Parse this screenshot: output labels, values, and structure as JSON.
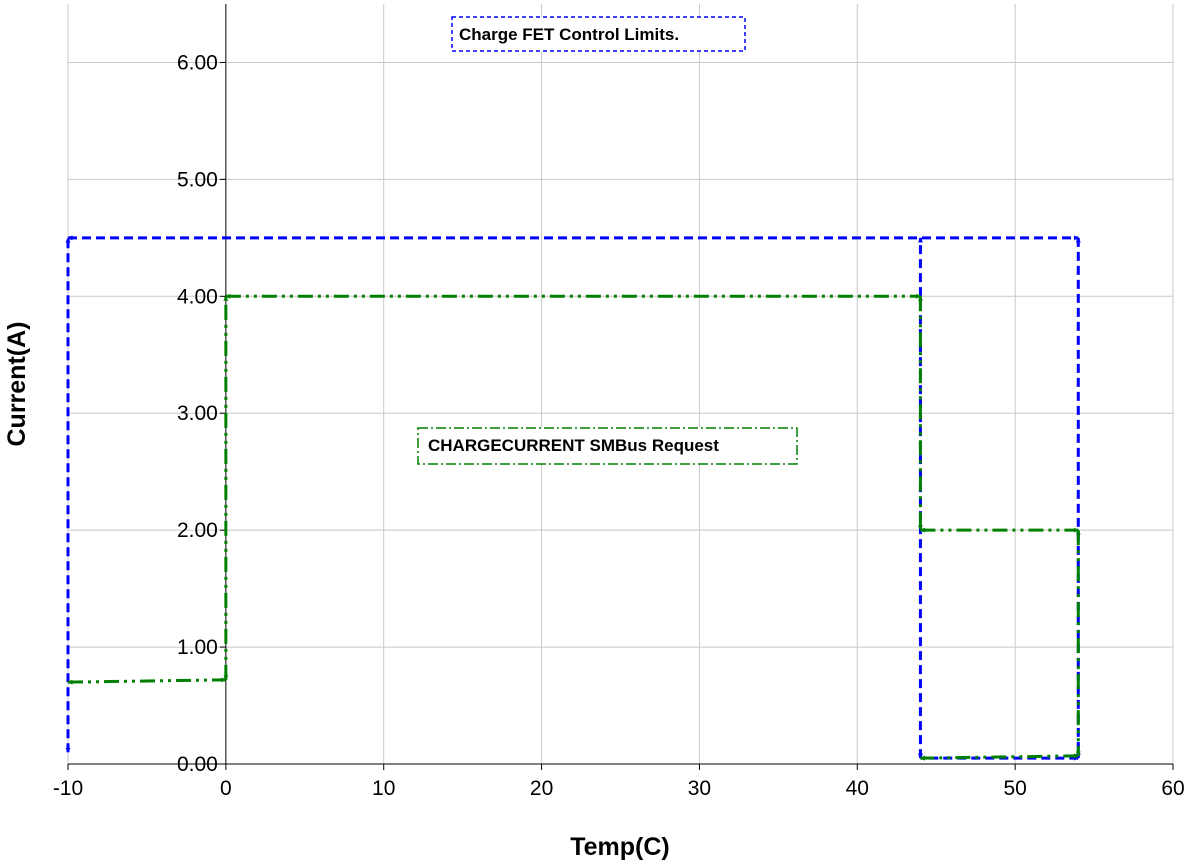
{
  "chart_data": {
    "type": "scatter",
    "title": "",
    "xlabel": "Temp(C)",
    "ylabel": "Current(A)",
    "xlim": [
      -10,
      60
    ],
    "ylim": [
      0,
      6.5
    ],
    "x_ticks": [
      -10,
      0,
      10,
      20,
      30,
      40,
      50,
      60
    ],
    "x_tick_labels": [
      "-10",
      "0",
      "10",
      "20",
      "30",
      "40",
      "50",
      "60"
    ],
    "y_ticks": [
      0,
      1,
      2,
      3,
      4,
      5,
      6
    ],
    "y_tick_labels": [
      "0.00",
      "1.00",
      "2.00",
      "3.00",
      "4.00",
      "5.00",
      "6.00"
    ],
    "grid": true,
    "legend": "none",
    "series": [
      {
        "name": "Charge FET Control Limits.",
        "color": "#0000ff",
        "line_style": "dashed",
        "points": [
          [
            -10,
            0.1
          ],
          [
            -10,
            4.5
          ],
          [
            54,
            4.5
          ],
          [
            54,
            0.05
          ],
          [
            44,
            0.05
          ],
          [
            44,
            4.5
          ]
        ]
      },
      {
        "name": "CHARGECURRENT SMBus Request",
        "color": "#008000",
        "line_style": "dash-dot",
        "points": [
          [
            -10,
            0.7
          ],
          [
            0,
            0.72
          ],
          [
            0,
            4.0
          ],
          [
            44,
            4.0
          ],
          [
            44,
            2.0
          ],
          [
            54,
            2.0
          ],
          [
            54,
            0.07
          ],
          [
            44,
            0.05
          ]
        ]
      }
    ],
    "annotations": [
      {
        "text": "Charge FET Control Limits.",
        "color": "#0000ff"
      },
      {
        "text": "CHARGECURRENT SMBus Request",
        "color": "#008000"
      }
    ]
  }
}
